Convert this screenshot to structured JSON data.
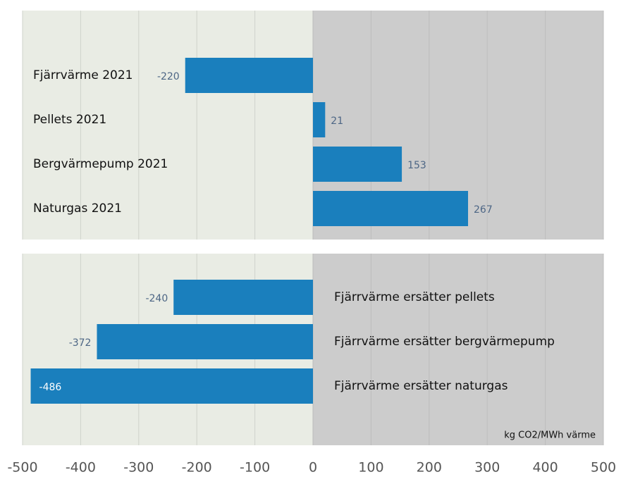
{
  "chart_data": [
    {
      "type": "bar",
      "orientation": "horizontal",
      "categories": [
        "Fjärrvärme 2021",
        "Pellets 2021",
        "Bergvärmepump 2021",
        "Naturgas 2021"
      ],
      "values": [
        -220,
        21,
        153,
        267
      ],
      "color": "#1a7fbd",
      "xlim": [
        -500,
        500
      ],
      "xticks": [
        -500,
        -400,
        -300,
        -200,
        -100,
        0,
        100,
        200,
        300,
        400,
        500
      ],
      "grid": true
    },
    {
      "type": "bar",
      "orientation": "horizontal",
      "categories": [
        "Fjärrvärme ersätter pellets",
        "Fjärrvärme ersätter bergvärmepump",
        "Fjärrvärme ersätter naturgas"
      ],
      "values": [
        -240,
        -372,
        -486
      ],
      "color": "#1a7fbd",
      "xlim": [
        -500,
        500
      ],
      "xticks": [
        -500,
        -400,
        -300,
        -200,
        -100,
        0,
        100,
        200,
        300,
        400,
        500
      ],
      "grid": true,
      "annotation": "kg CO2/MWh värme"
    }
  ]
}
